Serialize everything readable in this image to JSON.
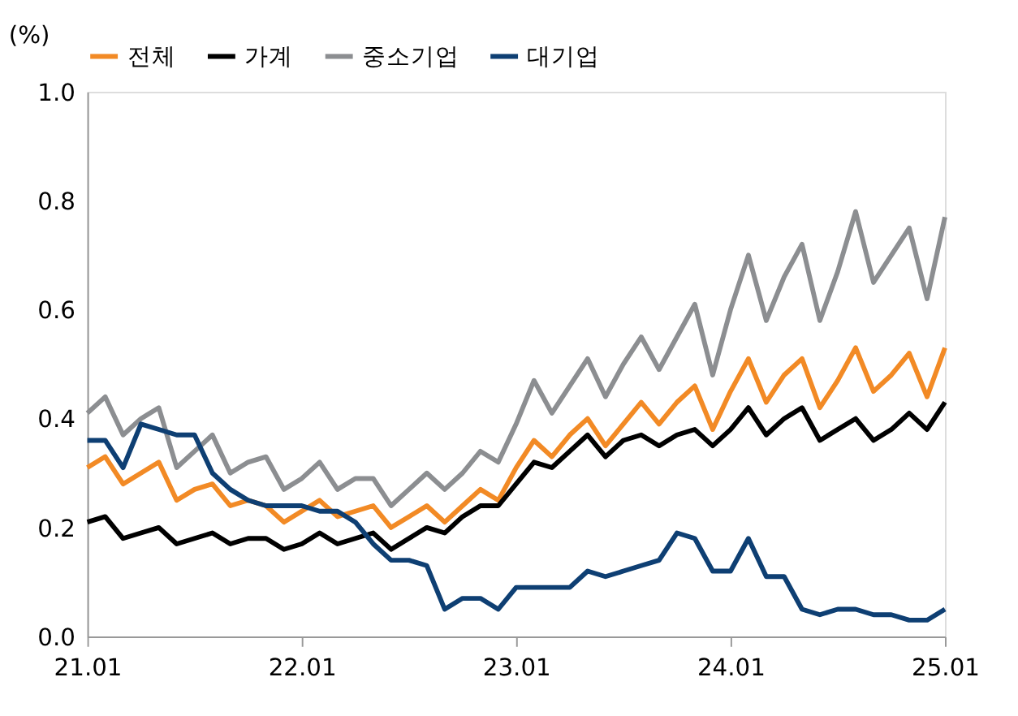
{
  "chart_data": {
    "type": "line",
    "ylabel": "(%)",
    "categories": [
      "21.01",
      null,
      null,
      null,
      null,
      null,
      null,
      null,
      null,
      null,
      null,
      null,
      "22.01",
      null,
      null,
      null,
      null,
      null,
      null,
      null,
      null,
      null,
      null,
      null,
      "23.01",
      null,
      null,
      null,
      null,
      null,
      null,
      null,
      null,
      null,
      null,
      null,
      "24.01",
      null,
      null,
      null,
      null,
      null,
      null,
      null,
      null,
      null,
      null,
      null,
      "25.01"
    ],
    "series": [
      {
        "name": "전체",
        "color": "#f28a25",
        "values": [
          0.31,
          0.33,
          0.28,
          0.3,
          0.32,
          0.25,
          0.27,
          0.28,
          0.24,
          0.25,
          0.24,
          0.21,
          0.23,
          0.25,
          0.22,
          0.23,
          0.24,
          0.2,
          0.22,
          0.24,
          0.21,
          0.24,
          0.27,
          0.25,
          0.31,
          0.36,
          0.33,
          0.37,
          0.4,
          0.35,
          0.39,
          0.43,
          0.39,
          0.43,
          0.46,
          0.38,
          0.45,
          0.51,
          0.43,
          0.48,
          0.51,
          0.42,
          0.47,
          0.53,
          0.45,
          0.48,
          0.52,
          0.44,
          0.53
        ]
      },
      {
        "name": "가계",
        "color": "#000000",
        "values": [
          0.21,
          0.22,
          0.18,
          0.19,
          0.2,
          0.17,
          0.18,
          0.19,
          0.17,
          0.18,
          0.18,
          0.16,
          0.17,
          0.19,
          0.17,
          0.18,
          0.19,
          0.16,
          0.18,
          0.2,
          0.19,
          0.22,
          0.24,
          0.24,
          0.28,
          0.32,
          0.31,
          0.34,
          0.37,
          0.33,
          0.36,
          0.37,
          0.35,
          0.37,
          0.38,
          0.35,
          0.38,
          0.42,
          0.37,
          0.4,
          0.42,
          0.36,
          0.38,
          0.4,
          0.36,
          0.38,
          0.41,
          0.38,
          0.43
        ]
      },
      {
        "name": "중소기업",
        "color": "#8c8e91",
        "values": [
          0.41,
          0.44,
          0.37,
          0.4,
          0.42,
          0.31,
          0.34,
          0.37,
          0.3,
          0.32,
          0.33,
          0.27,
          0.29,
          0.32,
          0.27,
          0.29,
          0.29,
          0.24,
          0.27,
          0.3,
          0.27,
          0.3,
          0.34,
          0.32,
          0.39,
          0.47,
          0.41,
          0.46,
          0.51,
          0.44,
          0.5,
          0.55,
          0.49,
          0.55,
          0.61,
          0.48,
          0.6,
          0.7,
          0.58,
          0.66,
          0.72,
          0.58,
          0.67,
          0.78,
          0.65,
          0.7,
          0.75,
          0.62,
          0.77
        ]
      },
      {
        "name": "대기업",
        "color": "#0e3f73",
        "values": [
          0.36,
          0.36,
          0.31,
          0.39,
          0.38,
          0.37,
          0.37,
          0.3,
          0.27,
          0.25,
          0.24,
          0.24,
          0.24,
          0.23,
          0.23,
          0.21,
          0.17,
          0.14,
          0.14,
          0.13,
          0.05,
          0.07,
          0.07,
          0.05,
          0.09,
          0.09,
          0.09,
          0.09,
          0.12,
          0.11,
          0.12,
          0.13,
          0.14,
          0.19,
          0.18,
          0.12,
          0.12,
          0.18,
          0.11,
          0.11,
          0.05,
          0.04,
          0.05,
          0.05,
          0.04,
          0.04,
          0.03,
          0.03,
          0.05
        ]
      }
    ],
    "ylim": [
      0,
      1.0
    ],
    "yticks": [
      {
        "value": 0,
        "label": "0.0"
      },
      {
        "value": 0.2,
        "label": "0.2"
      },
      {
        "value": 0.4,
        "label": "0.4"
      },
      {
        "value": 0.6,
        "label": "0.6"
      },
      {
        "value": 0.8,
        "label": "0.8"
      },
      {
        "value": 1.0,
        "label": "1.0"
      }
    ],
    "grid": false,
    "legend": "top",
    "marker": "none",
    "line_style": "solid"
  }
}
